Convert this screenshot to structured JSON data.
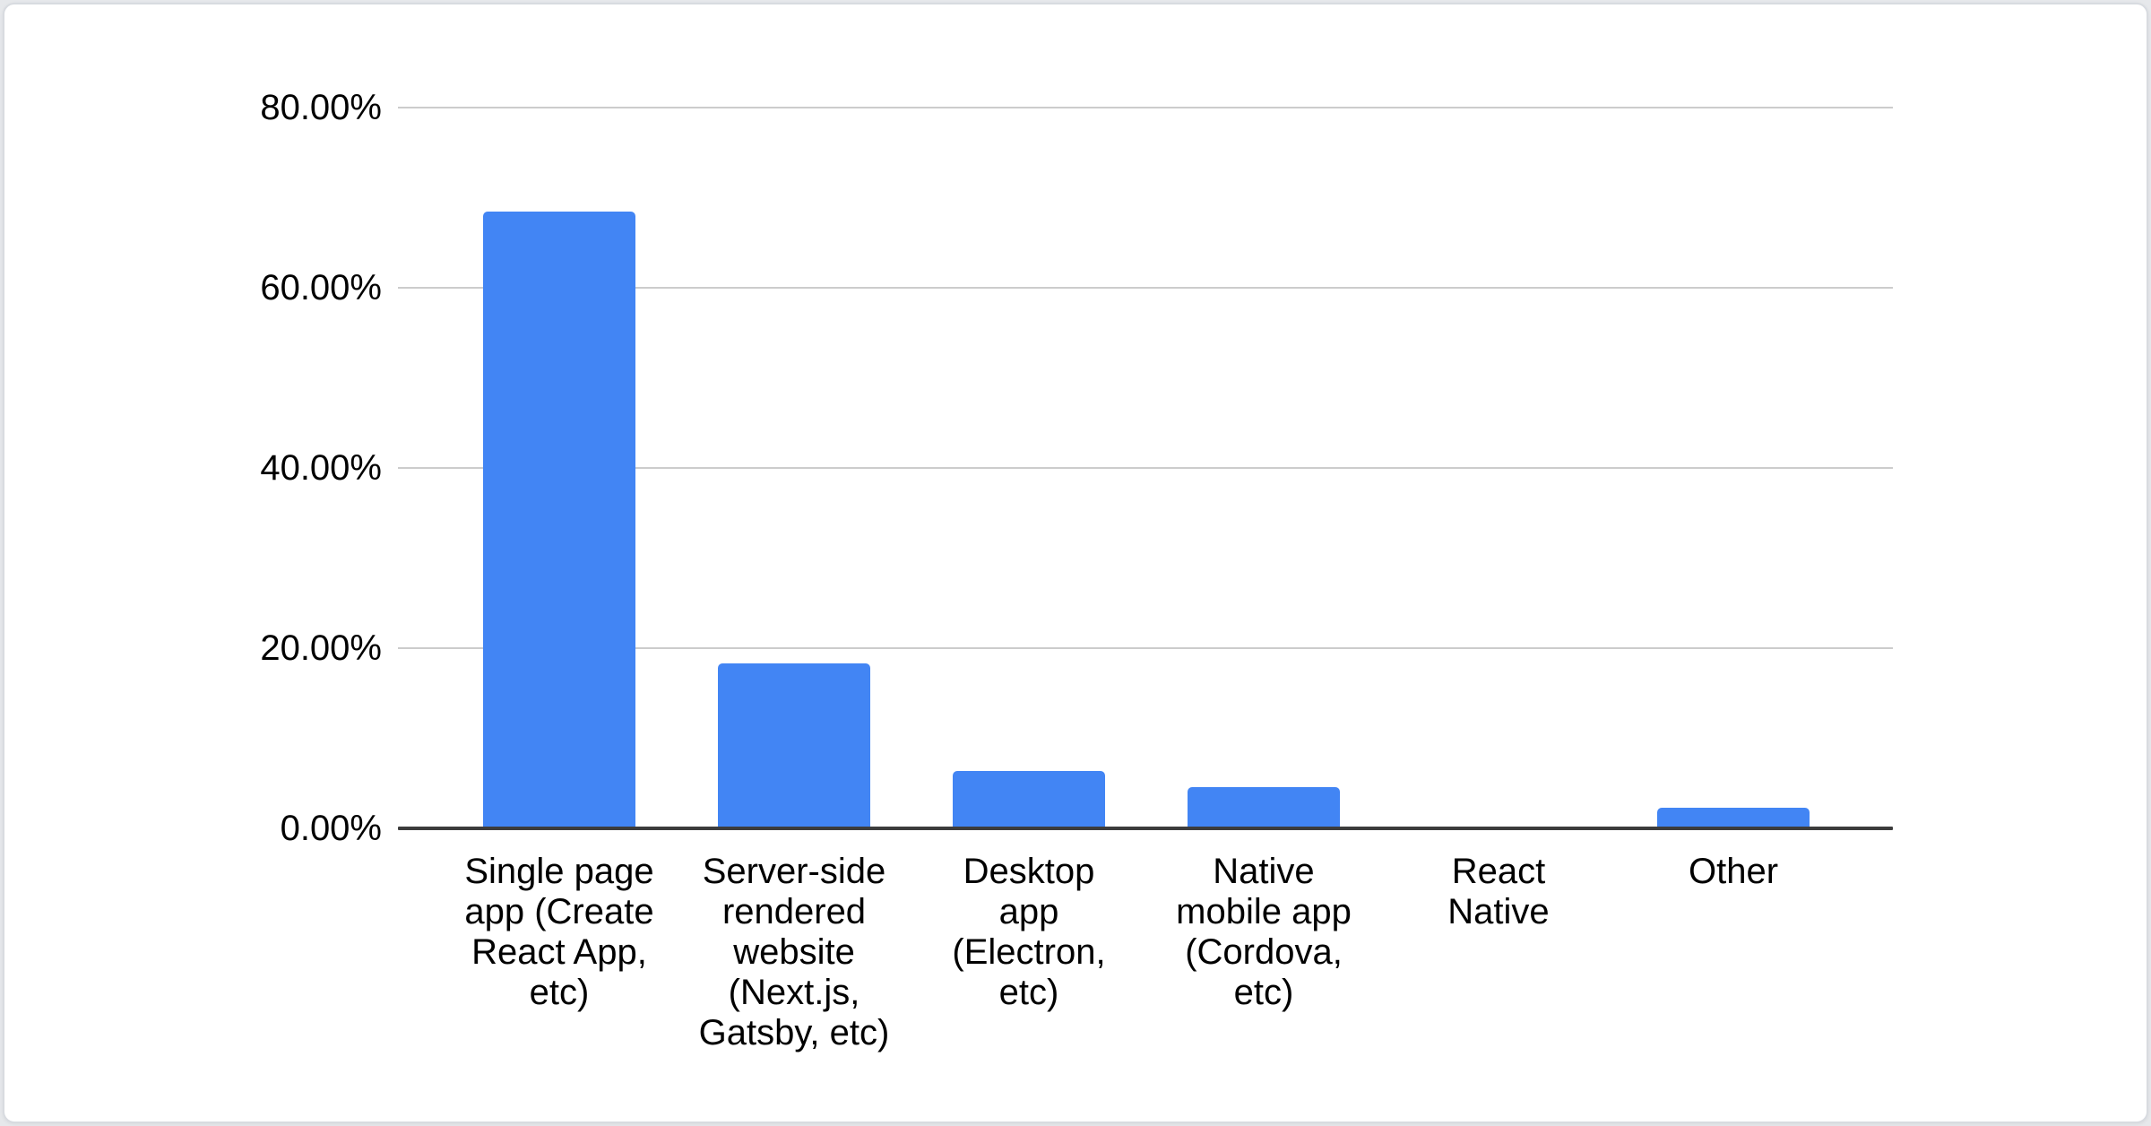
{
  "page": {
    "background_color": "#e6e8eb",
    "card_background": "#ffffff",
    "card_border_color": "#d8dbe0"
  },
  "chart_data": {
    "type": "bar",
    "title": "",
    "xlabel": "",
    "ylabel": "",
    "categories": [
      "Single page app (Create React App, etc)",
      "Server-side rendered website (Next.js, Gatsby, etc)",
      "Desktop app (Electron, etc)",
      "Native mobile app (Cordova, etc)",
      "React Native",
      "Other"
    ],
    "category_lines": [
      "Single page\napp (Create\nReact App,\netc)",
      "Server-side\nrendered\nwebsite\n(Next.js,\nGatsby, etc)",
      "Desktop\napp\n(Electron,\netc)",
      "Native\nmobile app\n(Cordova,\netc)",
      "React\nNative",
      "Other"
    ],
    "values": [
      68.5,
      18.3,
      6.4,
      4.6,
      0,
      2.3
    ],
    "unit": "%",
    "y_axis": {
      "range": [
        0,
        80
      ],
      "ticks": [
        {
          "value": 80,
          "label": "80.00%"
        },
        {
          "value": 60,
          "label": "60.00%"
        },
        {
          "value": 40,
          "label": "40.00%"
        },
        {
          "value": 20,
          "label": "20.00%"
        },
        {
          "value": 0,
          "label": "0.00%"
        }
      ]
    },
    "grid": true,
    "legend_position": "none",
    "colors": {
      "bar": "#4285f4",
      "gridline": "#cccccc",
      "axis_line": "#3c3c3c",
      "label_text": "#000000"
    }
  }
}
